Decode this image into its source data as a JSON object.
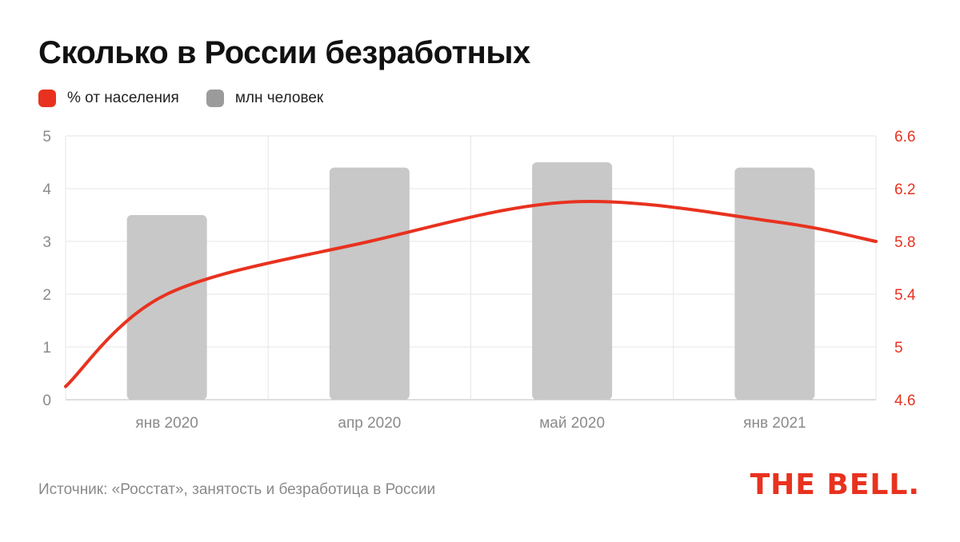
{
  "title": "Сколько в России безработных",
  "legend": [
    {
      "label": "% от населения",
      "color": "#e8321f"
    },
    {
      "label": "млн человек",
      "color": "#9b9b9b"
    }
  ],
  "source": "Источник: «Росстат», занятость и безработица в России",
  "logo": "THE BELL.",
  "chart_data": {
    "type": "bar",
    "categories": [
      "янв 2020",
      "апр 2020",
      "май 2020",
      "янв 2021"
    ],
    "bars": {
      "name": "млн человек",
      "values": [
        3.5,
        4.4,
        4.5,
        4.4
      ],
      "color": "#c8c8c8"
    },
    "line": {
      "name": "% от населения",
      "color": "#e8321f",
      "points": [
        {
          "x": 0.0,
          "y": 4.7
        },
        {
          "x": 0.5,
          "y": 5.4
        },
        {
          "x": 1.5,
          "y": 5.8
        },
        {
          "x": 2.5,
          "y": 6.1
        },
        {
          "x": 3.5,
          "y": 5.95
        },
        {
          "x": 4.0,
          "y": 5.8
        }
      ]
    },
    "left_axis": {
      "ticks": [
        "0",
        "1",
        "2",
        "3",
        "4",
        "5"
      ],
      "ylim": [
        0,
        5
      ]
    },
    "right_axis": {
      "ticks": [
        "4.6",
        "5",
        "5.4",
        "5.8",
        "6.2",
        "6.6"
      ],
      "ylim": [
        4.6,
        6.6
      ],
      "color": "#e8321f"
    },
    "grid": true
  }
}
